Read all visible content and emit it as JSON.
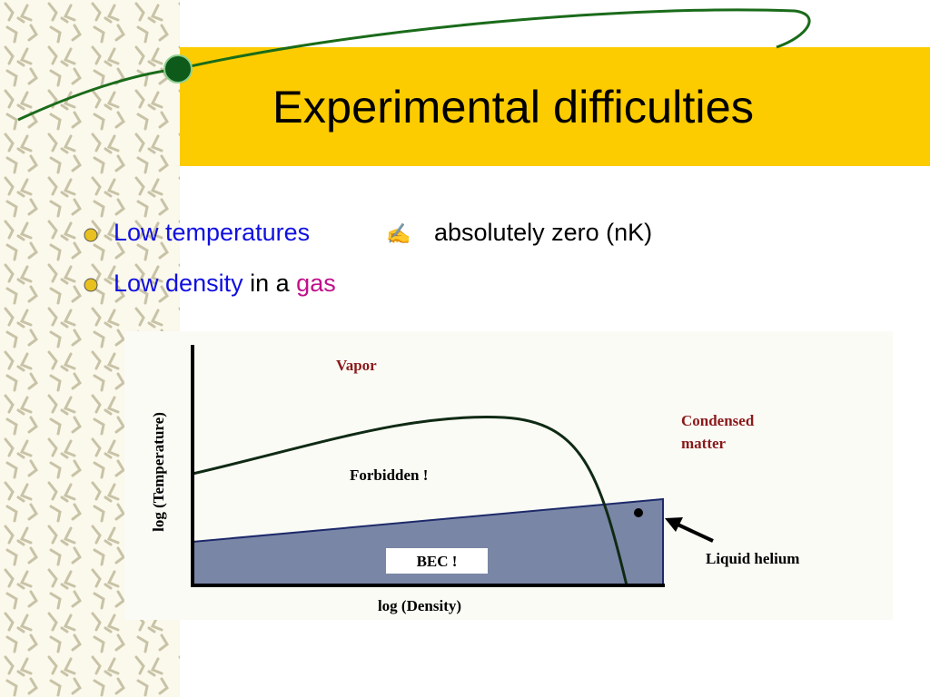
{
  "slide": {
    "title": "Experimental difficulties",
    "bullets": [
      {
        "parts": [
          "Low temperatures",
          "absolutely zero  (nK)"
        ]
      },
      {
        "parts": [
          "Low density",
          "in a",
          "gas"
        ]
      }
    ]
  },
  "figure": {
    "y_axis_label": "log (Temperature)",
    "x_axis_label": "log (Density)",
    "regions": {
      "vapor": "Vapor",
      "condensed": [
        "Condensed",
        "matter"
      ],
      "forbidden": "Forbidden !",
      "bec": "BEC !",
      "liquid_helium": "Liquid helium"
    }
  }
}
